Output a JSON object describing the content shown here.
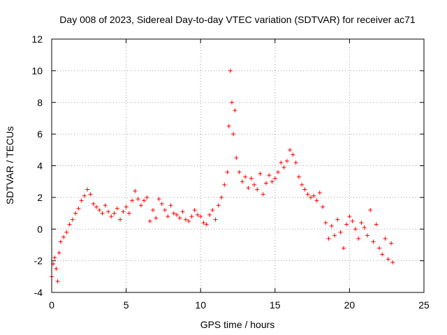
{
  "chart_data": {
    "type": "scatter",
    "title": "Day 008 of 2023, Sidereal Day-to-day VTEC variation (SDTVAR) for receiver ac71",
    "xlabel": "GPS time / hours",
    "ylabel": "SDTVAR / TECUs",
    "xlim": [
      0,
      25
    ],
    "ylim": [
      -4,
      12
    ],
    "xticks": [
      0,
      5,
      10,
      15,
      20,
      25
    ],
    "yticks": [
      -4,
      -2,
      0,
      2,
      4,
      6,
      8,
      10,
      12
    ],
    "grid": true,
    "marker": "plus",
    "series": [
      {
        "name": "ac71",
        "color": "#ff0000",
        "x": [
          0.0,
          0.1,
          0.2,
          0.3,
          0.4,
          0.5,
          0.6,
          0.8,
          1.0,
          1.2,
          1.4,
          1.6,
          1.8,
          2.0,
          2.2,
          2.4,
          2.6,
          2.8,
          3.0,
          3.2,
          3.4,
          3.6,
          3.8,
          4.0,
          4.2,
          4.4,
          4.6,
          4.8,
          5.0,
          5.2,
          5.4,
          5.6,
          5.8,
          6.0,
          6.2,
          6.4,
          6.6,
          6.8,
          7.0,
          7.2,
          7.4,
          7.6,
          7.8,
          8.0,
          8.2,
          8.4,
          8.6,
          8.8,
          9.0,
          9.2,
          9.4,
          9.6,
          9.8,
          10.0,
          10.2,
          10.4,
          10.6,
          10.8,
          11.0,
          11.2,
          11.4,
          11.6,
          11.8,
          11.9,
          12.0,
          12.1,
          12.2,
          12.3,
          12.4,
          12.6,
          12.8,
          13.0,
          13.2,
          13.4,
          13.6,
          13.8,
          14.0,
          14.2,
          14.4,
          14.6,
          14.8,
          15.0,
          15.2,
          15.4,
          15.6,
          15.8,
          16.0,
          16.2,
          16.4,
          16.6,
          16.8,
          17.0,
          17.2,
          17.4,
          17.6,
          17.8,
          18.0,
          18.2,
          18.4,
          18.6,
          18.8,
          19.0,
          19.2,
          19.4,
          19.6,
          19.8,
          20.0,
          20.2,
          20.4,
          20.6,
          20.8,
          21.0,
          21.2,
          21.4,
          21.6,
          21.8,
          22.0,
          22.2,
          22.4,
          22.6,
          22.8,
          22.9
        ],
        "y": [
          -3.0,
          -2.2,
          -1.8,
          -2.5,
          -3.3,
          -1.5,
          -0.8,
          -0.5,
          -0.2,
          0.3,
          0.6,
          1.0,
          1.3,
          1.8,
          2.1,
          2.5,
          2.2,
          1.6,
          1.4,
          1.2,
          1.0,
          1.5,
          1.1,
          0.8,
          1.0,
          1.3,
          0.6,
          1.1,
          1.4,
          1.0,
          1.8,
          2.4,
          1.9,
          1.5,
          1.8,
          2.0,
          0.5,
          1.2,
          0.7,
          1.9,
          1.6,
          1.2,
          0.8,
          1.5,
          1.0,
          0.9,
          0.7,
          1.1,
          0.6,
          0.5,
          0.8,
          1.2,
          0.9,
          0.8,
          0.4,
          0.3,
          0.9,
          1.2,
          0.6,
          1.5,
          2.0,
          2.8,
          3.6,
          6.5,
          10.0,
          8.0,
          6.0,
          7.5,
          4.5,
          3.6,
          3.0,
          3.3,
          2.6,
          3.2,
          2.8,
          2.5,
          3.5,
          2.2,
          2.9,
          3.4,
          3.0,
          3.2,
          3.6,
          4.2,
          3.9,
          4.3,
          5.0,
          4.7,
          4.2,
          3.3,
          2.8,
          2.5,
          2.2,
          2.0,
          2.1,
          1.8,
          2.3,
          1.4,
          0.4,
          -0.6,
          0.2,
          -0.4,
          0.6,
          -0.2,
          -1.2,
          0.3,
          0.8,
          0.5,
          0.0,
          -0.6,
          0.4,
          0.1,
          -0.4,
          1.2,
          -0.8,
          0.3,
          -1.2,
          -1.6,
          -0.6,
          -1.9,
          -0.9,
          -2.1
        ]
      }
    ]
  }
}
